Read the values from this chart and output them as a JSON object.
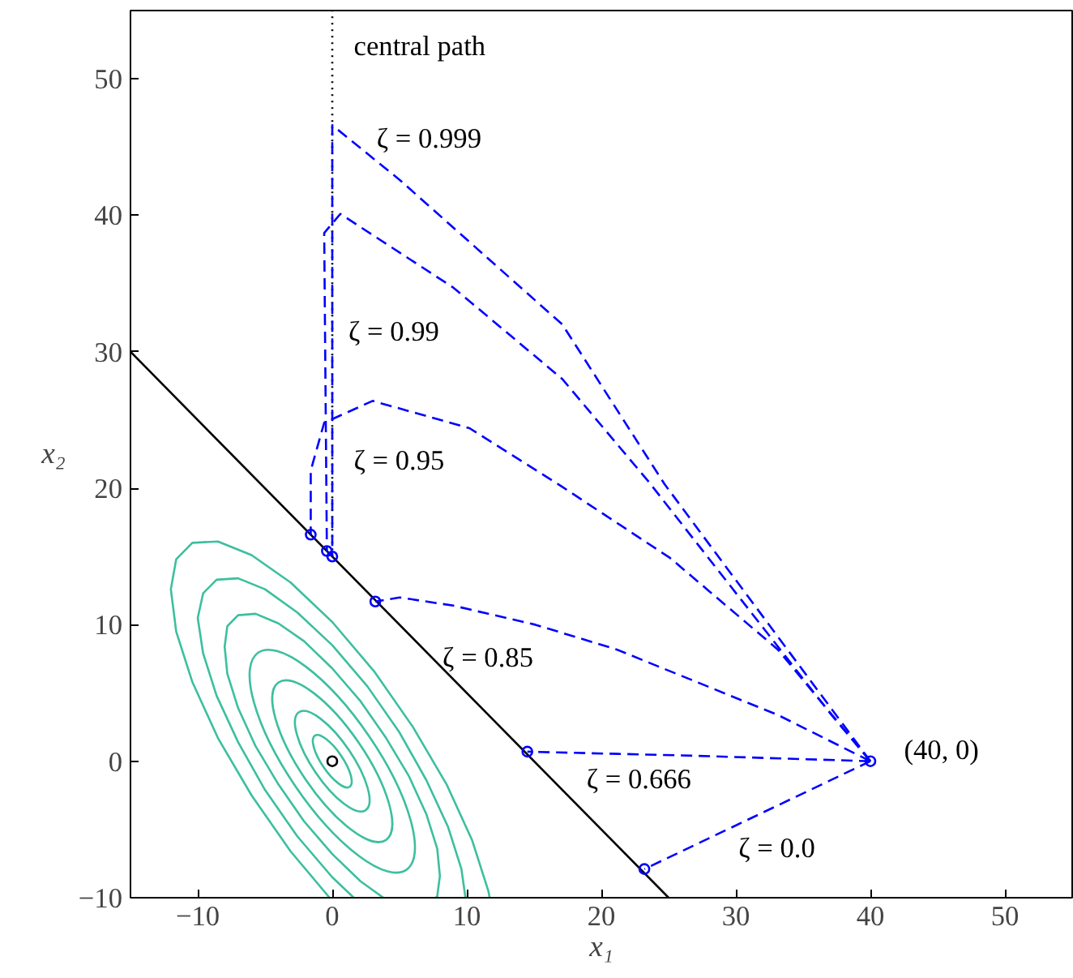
{
  "chart_data": {
    "type": "line",
    "xlabel": "x₁",
    "ylabel": "x₂",
    "xlim": [
      -15,
      55
    ],
    "ylim": [
      -10,
      55
    ],
    "xticks": [
      -10,
      0,
      10,
      20,
      30,
      40,
      50
    ],
    "yticks": [
      -10,
      0,
      10,
      20,
      30,
      40,
      50
    ],
    "grid": false,
    "series": [
      {
        "color": "#3cbf9f",
        "line_style": "solid",
        "x": [
          -0.2,
          -3.1,
          -6,
          -8.5,
          -10.4,
          -11.6,
          -12,
          -11.6,
          -10.4,
          -8.5,
          -6,
          -3.1,
          0,
          3.1,
          6,
          8.5,
          10.4,
          11.6,
          11.7
        ],
        "values": [
          -10,
          -6.6,
          -2.5,
          1.7,
          5.8,
          9.5,
          12.6,
          14.8,
          16,
          16.1,
          15.1,
          13.1,
          10.2,
          6.6,
          2.5,
          -1.7,
          -5.8,
          -9.5,
          -10
        ]
      },
      {
        "color": "#3cbf9f",
        "line_style": "solid",
        "x": [
          1.6,
          0,
          -2.6,
          -5,
          -7,
          -8.6,
          -9.6,
          -10,
          -9.6,
          -8.6,
          -7,
          -5,
          -2.6,
          0,
          2.6,
          5,
          7,
          8.6,
          9.6,
          9.9
        ],
        "values": [
          -10,
          -8.5,
          -5.5,
          -2.1,
          1.4,
          4.8,
          7.9,
          10.5,
          12.3,
          13.3,
          13.4,
          12.6,
          10.9,
          8.5,
          5.5,
          2.1,
          -1.4,
          -4.8,
          -7.9,
          -10
        ]
      },
      {
        "color": "#3cbf9f",
        "line_style": "solid",
        "x": [
          3.8,
          2.1,
          0,
          -2.1,
          -4,
          -5.7,
          -7,
          -7.8,
          -8,
          -7.8,
          -7,
          -5.7,
          -4,
          -2.1,
          0,
          2.1,
          4,
          5.7,
          7,
          7.8,
          8,
          7.8,
          7.7
        ],
        "values": [
          -10,
          -8.8,
          -6.8,
          -4.4,
          -1.7,
          1.1,
          3.9,
          6.4,
          8.4,
          9.9,
          10.7,
          10.8,
          10.1,
          8.8,
          6.8,
          4.4,
          1.7,
          -1.1,
          -3.9,
          -6.4,
          -8.4,
          -9.9,
          -10
        ]
      },
      {
        "color": "#000000",
        "line_style": "solid",
        "x": [
          -15,
          25
        ],
        "values": [
          30,
          -10
        ]
      },
      {
        "color": "#000000",
        "line_style": "dotted",
        "x": [
          0,
          0
        ],
        "values": [
          15,
          55
        ]
      },
      {
        "color": "#0000ff",
        "line_style": "dashed",
        "x": [
          40,
          23.2
        ],
        "values": [
          0,
          -7.9
        ]
      },
      {
        "color": "#0000ff",
        "line_style": "dashed",
        "x": [
          40,
          27,
          14.5
        ],
        "values": [
          0,
          0.4,
          0.7
        ]
      },
      {
        "color": "#0000ff",
        "line_style": "dashed",
        "x": [
          40,
          33.1,
          27.1,
          21.1,
          15.1,
          9,
          5,
          3.2
        ],
        "values": [
          0,
          3.4,
          5.8,
          8.2,
          10,
          11.4,
          12,
          11.7
        ]
      },
      {
        "color": "#0000ff",
        "line_style": "dashed",
        "x": [
          40,
          33.1,
          25.1,
          17.1,
          10.2,
          3,
          -0.6,
          -1.6,
          -1.6
        ],
        "values": [
          0,
          8.2,
          14.9,
          20.1,
          24.4,
          26.4,
          24.8,
          21.3,
          16.6
        ]
      },
      {
        "color": "#0000ff",
        "line_style": "dashed",
        "x": [
          40,
          37.1,
          23.5,
          17.1,
          9,
          0.6,
          -0.6,
          -0.4
        ],
        "values": [
          0,
          3.4,
          20.5,
          28,
          34.7,
          40.1,
          38.7,
          15.4
        ]
      },
      {
        "color": "#0000ff",
        "line_style": "dashed",
        "x": [
          40,
          24.7,
          17.1,
          5,
          0,
          0
        ],
        "values": [
          0,
          20.3,
          32,
          42.6,
          46.6,
          15
        ]
      },
      {
        "type": "scatter",
        "color": "#0000ff",
        "marker": "circle",
        "x": [
          -1.6,
          -0.4,
          0,
          3.2,
          14.5,
          23.2,
          40
        ],
        "values": [
          16.6,
          15.4,
          15,
          11.7,
          0.7,
          -7.9,
          0
        ]
      },
      {
        "type": "scatter",
        "color": "#000000",
        "marker": "circle",
        "x": [
          0
        ],
        "values": [
          0
        ]
      }
    ],
    "annotations": [
      "central path",
      "ζ = 0.999",
      "ζ = 0.99",
      "ζ = 0.95",
      "ζ = 0.85",
      "ζ = 0.666",
      "ζ = 0.0",
      "(40, 0)"
    ]
  }
}
